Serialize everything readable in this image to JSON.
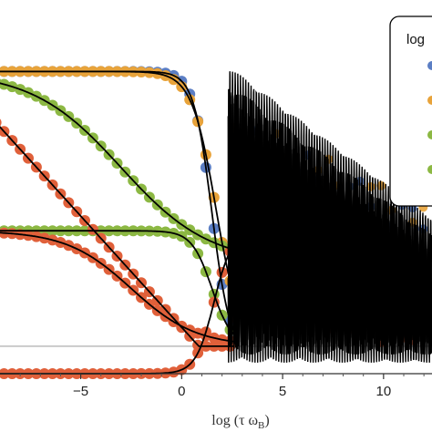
{
  "chart_data": {
    "type": "scatter",
    "title": "",
    "xlabel": "log (τ ω",
    "xlabel_sub": "B",
    "xlabel_close": ")",
    "ylabel": "",
    "xlim": [
      -9.0,
      12.4
    ],
    "ylim": [
      -0.1,
      1.26
    ],
    "x_ticks": [
      -5,
      0,
      5,
      10
    ],
    "x_tick_labels": [
      "−5",
      "0",
      "5",
      "10"
    ],
    "grid": false,
    "reference_line_y": 0.0,
    "legend": {
      "title": "log",
      "placement": "top-right",
      "partially_visible": true
    },
    "series": [
      {
        "color": "#5b7ec4",
        "marker": "circle",
        "x_step": 0.4,
        "plateau": 1.0,
        "drop_center": 1.5,
        "drop_width": 0.45,
        "floor": -0.03
      },
      {
        "color": "#e8a33a",
        "marker": "circle",
        "x_step": 0.4,
        "plateau": 1.0,
        "drop_center": 1.7,
        "drop_width": 0.6,
        "floor": 0.0
      },
      {
        "color": "#8cb843",
        "marker": "circle",
        "x_step": 0.4,
        "plateau": 1.0,
        "drop_center": -3.0,
        "drop_width": 2.2,
        "floor": 0.3,
        "tail_end": 3.6
      },
      {
        "color": "#8cb843",
        "marker": "circle",
        "x_step": 0.4,
        "plateau": 0.42,
        "drop_center": 1.5,
        "drop_width": 0.5,
        "floor": 0.0
      },
      {
        "color": "#e0603a",
        "marker": "circle",
        "x_step": 0.4,
        "plateau": 0.42,
        "drop_center": -2.5,
        "drop_width": 1.6,
        "floor": 0.0
      },
      {
        "color": "#e0603a",
        "marker": "circle",
        "x_step": 0.4,
        "plateau": 0.83,
        "start": -9.4,
        "slope": -0.081,
        "floor": 0.0
      },
      {
        "color": "#e0603a",
        "marker": "circle",
        "x_step": 0.4,
        "rise_from": -0.1,
        "rise_to": 0.42,
        "drop_center": 1.6,
        "drop_width": 0.45
      }
    ],
    "fit_color": "#000000",
    "oscillation_region": [
      2.3,
      12.4
    ]
  }
}
